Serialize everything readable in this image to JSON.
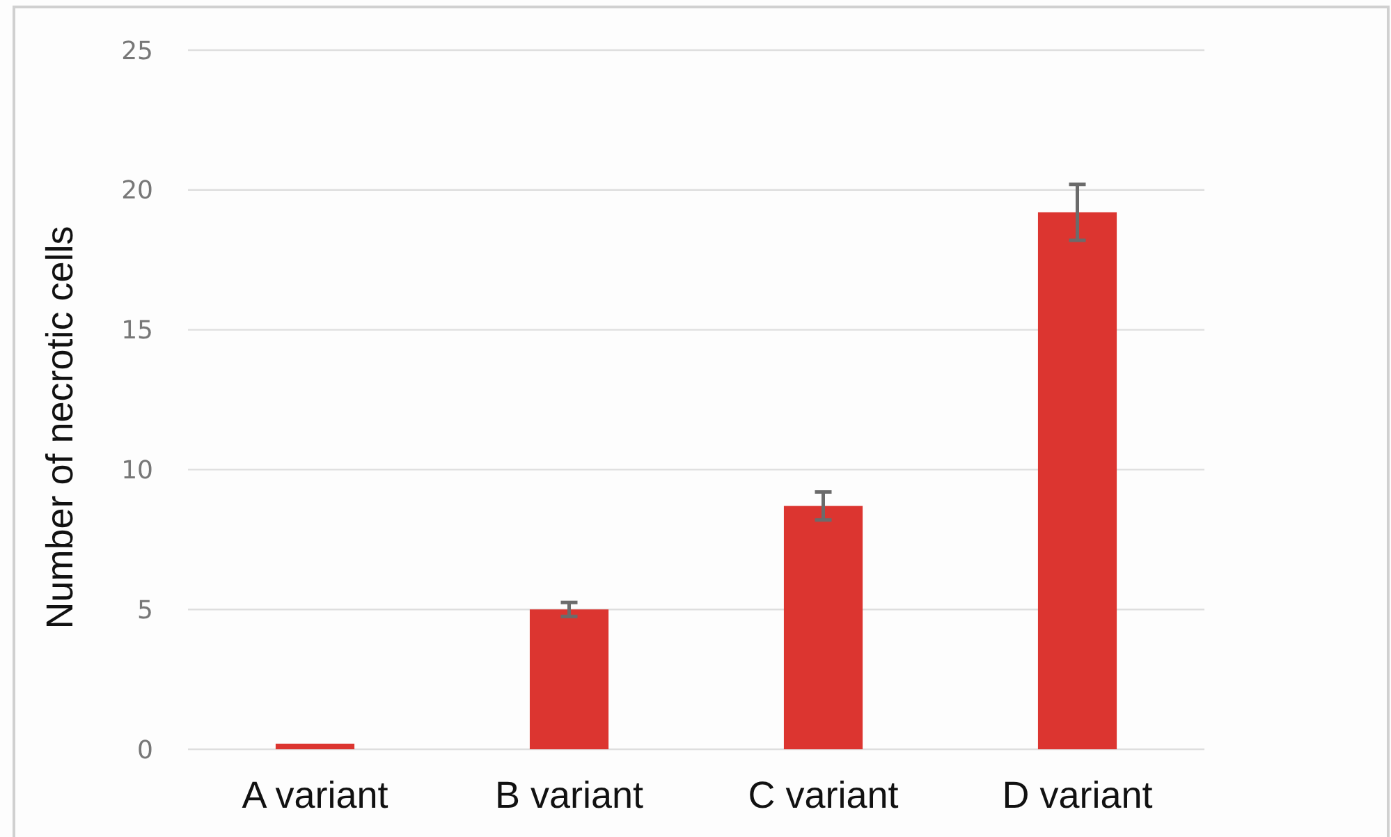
{
  "chart_data": {
    "type": "bar",
    "ylabel": "Number of necrotic cells",
    "categories": [
      "A variant",
      "B variant",
      "C variant",
      "D variant"
    ],
    "values": [
      0.2,
      5.0,
      8.7,
      19.2
    ],
    "errors": [
      null,
      0.25,
      0.5,
      1.0
    ],
    "color": "#dc3530",
    "ylim": [
      0,
      25
    ],
    "yticks": [
      0,
      5,
      10,
      15,
      20,
      25
    ],
    "grid": "y"
  }
}
